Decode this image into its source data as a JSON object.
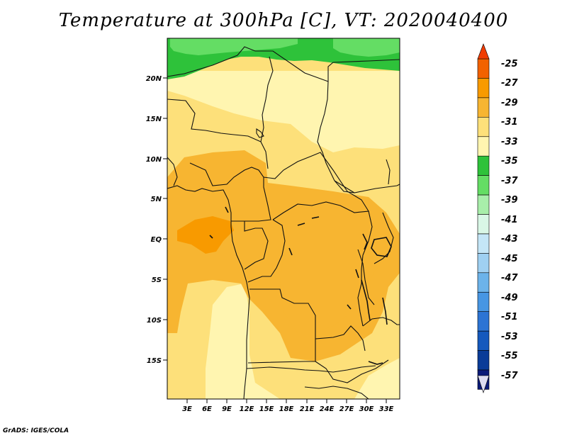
{
  "title": "Temperature at 300hPa [C], VT: 2020040400",
  "footer": "GrADS: IGES/COLA",
  "map": {
    "lat_labels": [
      "20N",
      "15N",
      "10N",
      "5N",
      "EQ",
      "5S",
      "10S",
      "15S"
    ],
    "lon_labels": [
      "3E",
      "6E",
      "9E",
      "12E",
      "15E",
      "18E",
      "21E",
      "24E",
      "27E",
      "30E",
      "33E"
    ]
  },
  "colorbar": {
    "labels": [
      "-25",
      "-27",
      "-29",
      "-31",
      "-33",
      "-35",
      "-37",
      "-39",
      "-41",
      "-43",
      "-45",
      "-47",
      "-49",
      "-51",
      "-53",
      "-55",
      "-57"
    ],
    "colors": {
      "top_arrow": "#f03c00",
      "bins": [
        "#f26200",
        "#f89a00",
        "#f7b531",
        "#fde07a",
        "#fff5b0",
        "#2ec23a",
        "#64dd64",
        "#a8eeaa",
        "#d9f7e6",
        "#c4e6f7",
        "#9fd0f2",
        "#6cb3ea",
        "#4796e3",
        "#2c74d4",
        "#1559bd",
        "#0a3c98",
        "#0a1a78"
      ],
      "bottom_arrow": "#dcdcf0"
    }
  },
  "field_colors": {
    "c29": "#f89a00",
    "c31": "#f7b531",
    "c33": "#fde07a",
    "c35": "#fff5b0",
    "c37": "#2ec23a",
    "c39": "#64dd64"
  }
}
